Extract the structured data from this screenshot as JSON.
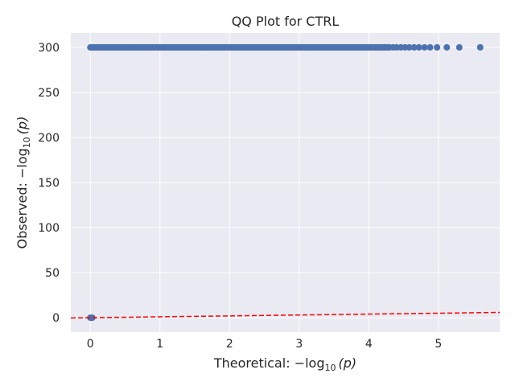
{
  "chart_data": {
    "type": "scatter",
    "title": "QQ Plot for CTRL",
    "xlabel": {
      "prefix": "Theoretical: −log",
      "sub": "10",
      "suffix": "(p)"
    },
    "ylabel": {
      "prefix": "Observed: −log",
      "sub": "10",
      "suffix": "(p)"
    },
    "xlim": [
      -0.28,
      5.88
    ],
    "ylim": [
      -16,
      316
    ],
    "xticks": [
      0,
      1,
      2,
      3,
      4,
      5
    ],
    "yticks": [
      0,
      50,
      100,
      150,
      200,
      250,
      300
    ],
    "grid": true,
    "style": {
      "background": "#eaeaf2",
      "grid_color": "#ffffff",
      "point_color": "#4c72b0",
      "line_color": "#ff0000"
    },
    "series": [
      {
        "kind": "points",
        "dense_band": {
          "y": 300,
          "x_from": 0.0,
          "x_to": 4.3
        },
        "sparse_points": [
          [
            4.35,
            300
          ],
          [
            4.4,
            300
          ],
          [
            4.46,
            300
          ],
          [
            4.52,
            300
          ],
          [
            4.58,
            300
          ],
          [
            4.65,
            300
          ],
          [
            4.72,
            300
          ],
          [
            4.8,
            300
          ],
          [
            4.88,
            300
          ],
          [
            4.98,
            300
          ],
          [
            5.12,
            300
          ],
          [
            5.3,
            300
          ],
          [
            5.6,
            300
          ]
        ],
        "low_points": [
          [
            0,
            0
          ],
          [
            0.01,
            0
          ],
          [
            0.02,
            0
          ],
          [
            0.03,
            0
          ]
        ]
      },
      {
        "kind": "reference-line",
        "style": "dashed",
        "x": [
          -0.28,
          5.88
        ],
        "y": [
          -0.28,
          5.88
        ]
      }
    ]
  }
}
